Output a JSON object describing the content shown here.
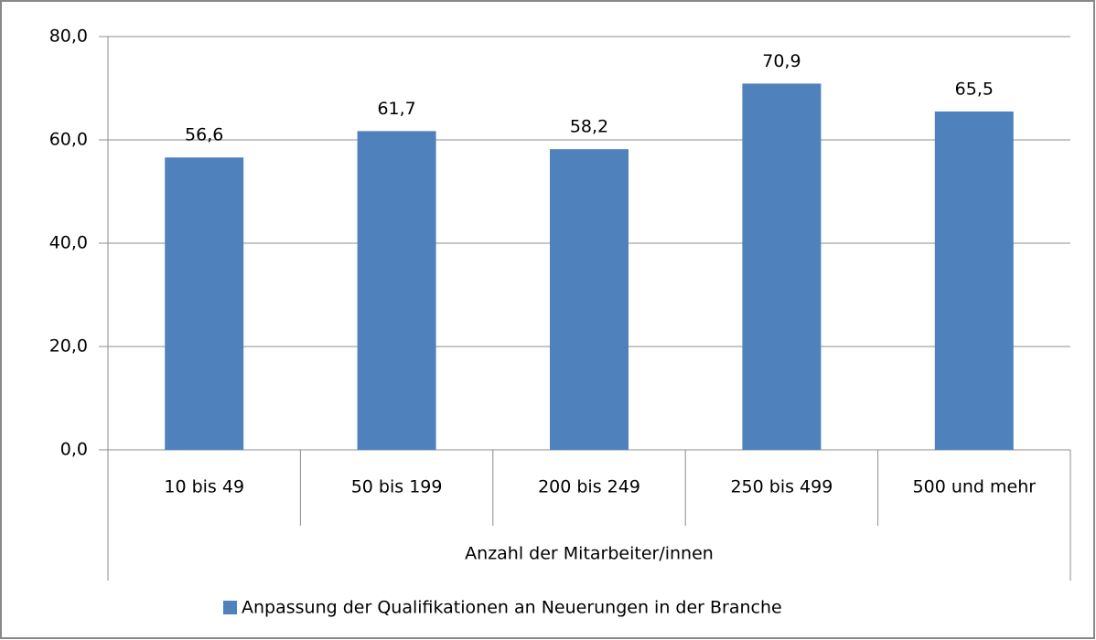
{
  "chart_data": {
    "type": "bar",
    "categories": [
      "10 bis 49",
      "50 bis 199",
      "200 bis 249",
      "250 bis 499",
      "500 und mehr"
    ],
    "series": [
      {
        "name": "Anpassung der Qualifikationen an Neuerungen in der Branche",
        "color": "#4f81bd",
        "values": [
          56.6,
          61.7,
          58.2,
          70.9,
          65.5
        ],
        "value_labels": [
          "56,6",
          "61,7",
          "58,2",
          "70,9",
          "65,5"
        ]
      }
    ],
    "xlabel": "Anzahl der Mitarbeiter/innen",
    "ylim": [
      0,
      80
    ],
    "yticks": [
      {
        "value": 0,
        "label": "0,0"
      },
      {
        "value": 20,
        "label": "20,0"
      },
      {
        "value": 40,
        "label": "40,0"
      },
      {
        "value": 60,
        "label": "60,0"
      },
      {
        "value": 80,
        "label": "80,0"
      }
    ],
    "grid": true,
    "legend": "bottom"
  }
}
